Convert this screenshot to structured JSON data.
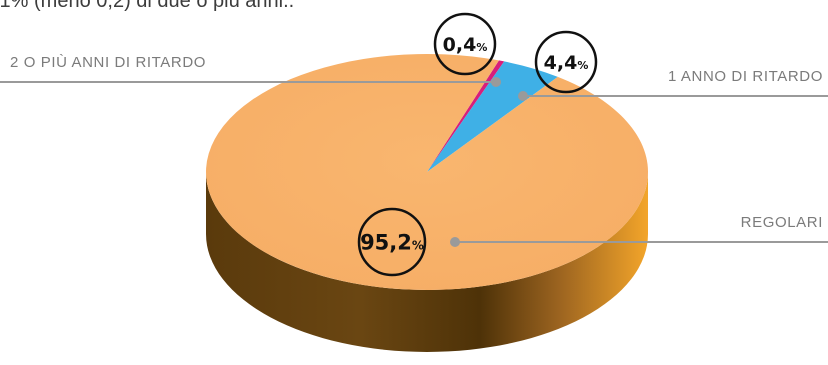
{
  "intro_text": ",1% (meno 0,2) di due o più anni..",
  "chart_data": {
    "type": "pie",
    "title": "",
    "unit": "%",
    "slices": [
      {
        "label": "REGOLARI",
        "value": 95.2,
        "value_text": "95,2",
        "color": "#f8b36f"
      },
      {
        "label": "1 ANNO DI RITARDO",
        "value": 4.4,
        "value_text": "4,4",
        "color": "#3fb0e6"
      },
      {
        "label": "2 O PIÙ ANNI DI RITARDO",
        "value": 0.4,
        "value_text": "0,4",
        "color": "#d71f7b"
      }
    ]
  }
}
